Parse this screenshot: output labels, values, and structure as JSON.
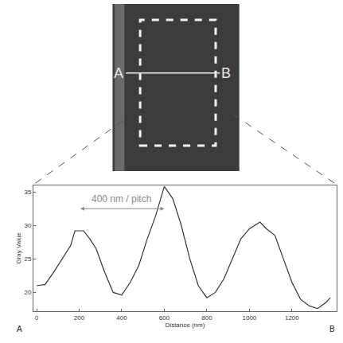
{
  "image": {
    "profile_start": "A",
    "profile_end": "B"
  },
  "chart_data": {
    "type": "line",
    "x_label": "Distance (nm)",
    "y_label": "Gray Value",
    "x": [
      0,
      40,
      80,
      120,
      160,
      180,
      200,
      220,
      250,
      280,
      320,
      360,
      400,
      440,
      480,
      520,
      560,
      600,
      640,
      680,
      720,
      760,
      800,
      840,
      880,
      920,
      960,
      1000,
      1050,
      1080,
      1120,
      1160,
      1200,
      1240,
      1280,
      1320,
      1360,
      1380
    ],
    "values": [
      21,
      21.2,
      23,
      25,
      27,
      29.2,
      29.2,
      29.2,
      28,
      26.5,
      23,
      20,
      19.6,
      21.5,
      24,
      28,
      31.5,
      35.8,
      34,
      30,
      25,
      21,
      19.2,
      20,
      22,
      25,
      28,
      29.5,
      30.5,
      29.5,
      28.5,
      25,
      21.5,
      19,
      18,
      17.6,
      18.5,
      19.2
    ],
    "color": "#333333",
    "xlim": [
      -15,
      1410
    ],
    "xticks": [
      0,
      200,
      400,
      600,
      800,
      1000,
      1200
    ],
    "ylim": [
      17.2,
      36
    ],
    "yticks": [
      20,
      25,
      30,
      35
    ],
    "grid": false,
    "annotation": {
      "text": "400 nm / pitch",
      "x": [
        200,
        600
      ],
      "y": 32.5
    }
  }
}
